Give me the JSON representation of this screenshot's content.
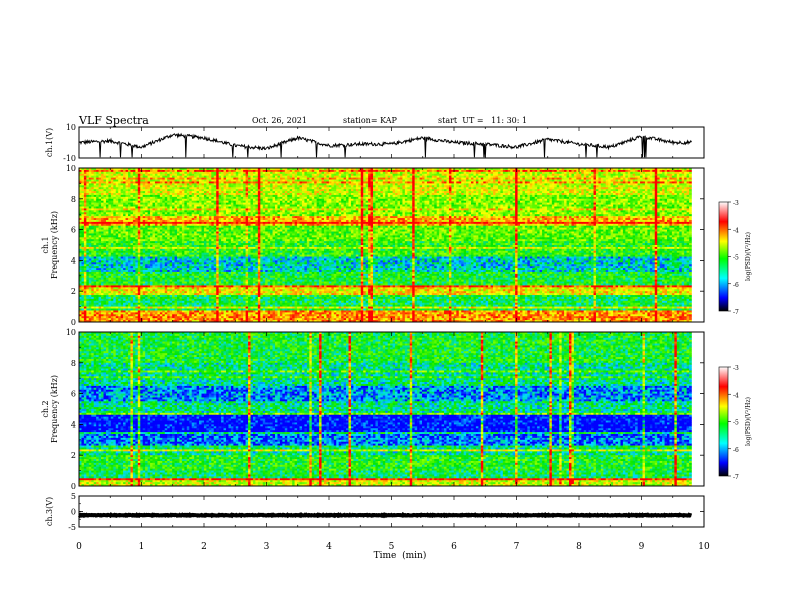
{
  "header": {
    "title": "VLF Spectra",
    "date": "Oct. 26, 2021",
    "station": "station= KAP",
    "start_time": "start  UT =   11: 30: 1"
  },
  "colorbar": {
    "label": "log(PSD)(V²/Hz)",
    "ticks": [
      "-3",
      "-4",
      "-5",
      "-6",
      "-7"
    ],
    "colors": [
      "#ffffff",
      "#ff0000",
      "#ffff00",
      "#00ff00",
      "#00ffff",
      "#0000ff",
      "#000000"
    ]
  },
  "chart_data": [
    {
      "type": "line",
      "panel": "ch1-waveform",
      "ylabel": "ch.1(V)",
      "ylim": [
        -10,
        10
      ],
      "y_tick_labels": [
        "10",
        "-10"
      ],
      "x": [
        0,
        0.5,
        1,
        1.5,
        2,
        2.5,
        3,
        3.5,
        4,
        4.5,
        5,
        5.5,
        6,
        6.5,
        7,
        7.5,
        8,
        8.5,
        9,
        9.5,
        9.8
      ],
      "values": [
        0,
        1,
        -3,
        5,
        3,
        -2,
        -4,
        3,
        -2,
        -1,
        -1,
        3,
        0,
        -1,
        -3,
        2,
        -1,
        -3,
        4,
        0,
        0
      ]
    },
    {
      "type": "heatmap",
      "panel": "ch1-spectrogram",
      "ylabel": "ch.1\nFrequency (kHz)",
      "ylim": [
        0,
        10
      ],
      "y_tick_labels": [
        "10",
        "8",
        "6",
        "4",
        "2",
        "0"
      ],
      "bands": [
        {
          "f": [
            0.0,
            0.8
          ],
          "level": 0.85
        },
        {
          "f": [
            0.8,
            1.8
          ],
          "level": 0.45
        },
        {
          "f": [
            1.8,
            2.2
          ],
          "level": 0.75
        },
        {
          "f": [
            2.2,
            2.4
          ],
          "level": 0.95
        },
        {
          "f": [
            2.4,
            3.3
          ],
          "level": 0.48
        },
        {
          "f": [
            3.3,
            4.3
          ],
          "level": 0.35
        },
        {
          "f": [
            4.3,
            5.2
          ],
          "level": 0.52
        },
        {
          "f": [
            5.2,
            6.3
          ],
          "level": 0.58
        },
        {
          "f": [
            6.3,
            6.9
          ],
          "level": 0.82
        },
        {
          "f": [
            6.9,
            8.2
          ],
          "level": 0.62
        },
        {
          "f": [
            8.2,
            10.0
          ],
          "level": 0.7
        }
      ]
    },
    {
      "type": "heatmap",
      "panel": "ch2-spectrogram",
      "ylabel": "ch.2\nFrequency (kHz)",
      "ylim": [
        0,
        10
      ],
      "y_tick_labels": [
        "10",
        "8",
        "6",
        "4",
        "2",
        "0"
      ],
      "bands": [
        {
          "f": [
            0.0,
            0.5
          ],
          "level": 0.7
        },
        {
          "f": [
            0.5,
            1.0
          ],
          "level": 0.45
        },
        {
          "f": [
            1.0,
            2.0
          ],
          "level": 0.5
        },
        {
          "f": [
            2.0,
            2.6
          ],
          "level": 0.4
        },
        {
          "f": [
            2.6,
            3.5
          ],
          "level": 0.25
        },
        {
          "f": [
            3.5,
            4.6
          ],
          "level": 0.15
        },
        {
          "f": [
            4.6,
            5.5
          ],
          "level": 0.4
        },
        {
          "f": [
            5.5,
            6.5
          ],
          "level": 0.28
        },
        {
          "f": [
            6.5,
            8.0
          ],
          "level": 0.4
        },
        {
          "f": [
            8.0,
            10.0
          ],
          "level": 0.48
        }
      ]
    },
    {
      "type": "line",
      "panel": "ch3-waveform",
      "ylabel": "ch.3(V)",
      "ylim": [
        -5,
        5
      ],
      "y_tick_labels": [
        "5",
        "0",
        "-5"
      ],
      "x": [
        0,
        9.8
      ],
      "values": [
        -1.2,
        -1.2
      ]
    }
  ],
  "xaxis": {
    "label": "Time  (min)",
    "range": [
      0,
      10
    ],
    "ticks": [
      "0",
      "1",
      "2",
      "3",
      "4",
      "5",
      "6",
      "7",
      "8",
      "9",
      "10"
    ]
  }
}
